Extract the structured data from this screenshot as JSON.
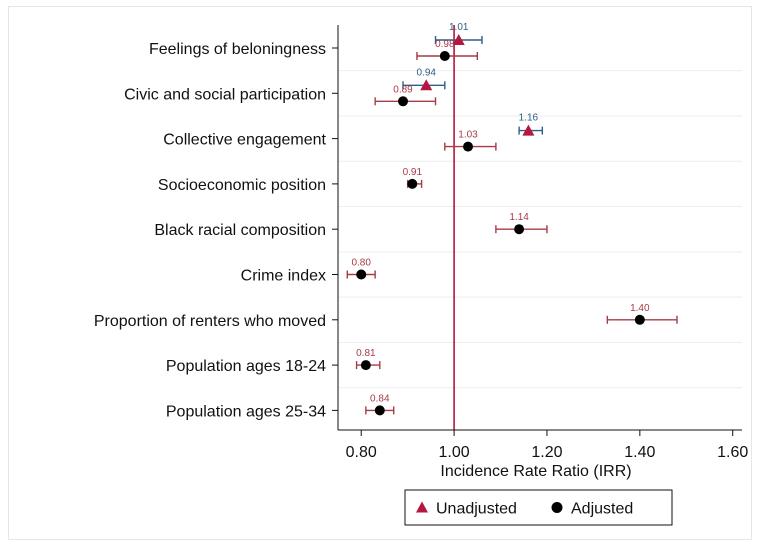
{
  "chart_data": {
    "type": "scatter",
    "xlabel": "Incidence Rate Ratio (IRR)",
    "xlim": [
      0.75,
      1.62
    ],
    "xticks": [
      "0.80",
      "1.00",
      "1.20",
      "1.40",
      "1.60"
    ],
    "reference_line": 1.0,
    "grid": true,
    "legend_position": "bottom",
    "colors": {
      "unadjusted": "#b5173f",
      "adjusted": "#000000",
      "unadj_ci": "#2f5f8a",
      "adj_ci": "#a83b45",
      "refline": "#b5173f"
    },
    "categories": [
      "Feelings of beloningness",
      "Civic and social participation",
      "Collective engagement",
      "Socioeconomic position",
      "Black racial composition",
      "Crime index",
      "Proportion of renters who moved",
      "Population ages 18-24",
      "Population ages 25-34"
    ],
    "series": [
      {
        "name": "Unadjusted",
        "marker": "triangle",
        "points": [
          {
            "category": "Feelings of beloningness",
            "value": 1.01,
            "label": "1.01",
            "ci": [
              0.96,
              1.06
            ]
          },
          {
            "category": "Civic and social participation",
            "value": 0.94,
            "label": "0.94",
            "ci": [
              0.89,
              0.98
            ]
          },
          {
            "category": "Collective engagement",
            "value": 1.16,
            "label": "1.16",
            "ci": [
              1.14,
              1.19
            ]
          }
        ]
      },
      {
        "name": "Adjusted",
        "marker": "circle",
        "points": [
          {
            "category": "Feelings of beloningness",
            "value": 0.98,
            "label": "0.98",
            "ci": [
              0.92,
              1.05
            ]
          },
          {
            "category": "Civic and social participation",
            "value": 0.89,
            "label": "0.89",
            "ci": [
              0.83,
              0.96
            ]
          },
          {
            "category": "Collective engagement",
            "value": 1.03,
            "label": "1.03",
            "ci": [
              0.98,
              1.09
            ]
          },
          {
            "category": "Socioeconomic position",
            "value": 0.91,
            "label": "0.91",
            "ci": [
              0.9,
              0.93
            ]
          },
          {
            "category": "Black racial composition",
            "value": 1.14,
            "label": "1.14",
            "ci": [
              1.09,
              1.2
            ]
          },
          {
            "category": "Crime index",
            "value": 0.8,
            "label": "0.80",
            "ci": [
              0.77,
              0.83
            ]
          },
          {
            "category": "Proportion of renters who moved",
            "value": 1.4,
            "label": "1.40",
            "ci": [
              1.33,
              1.48
            ]
          },
          {
            "category": "Population ages 18-24",
            "value": 0.81,
            "label": "0.81",
            "ci": [
              0.79,
              0.84
            ]
          },
          {
            "category": "Population ages 25-34",
            "value": 0.84,
            "label": "0.84",
            "ci": [
              0.81,
              0.87
            ]
          }
        ]
      }
    ],
    "legend": [
      "Unadjusted",
      "Adjusted"
    ]
  }
}
